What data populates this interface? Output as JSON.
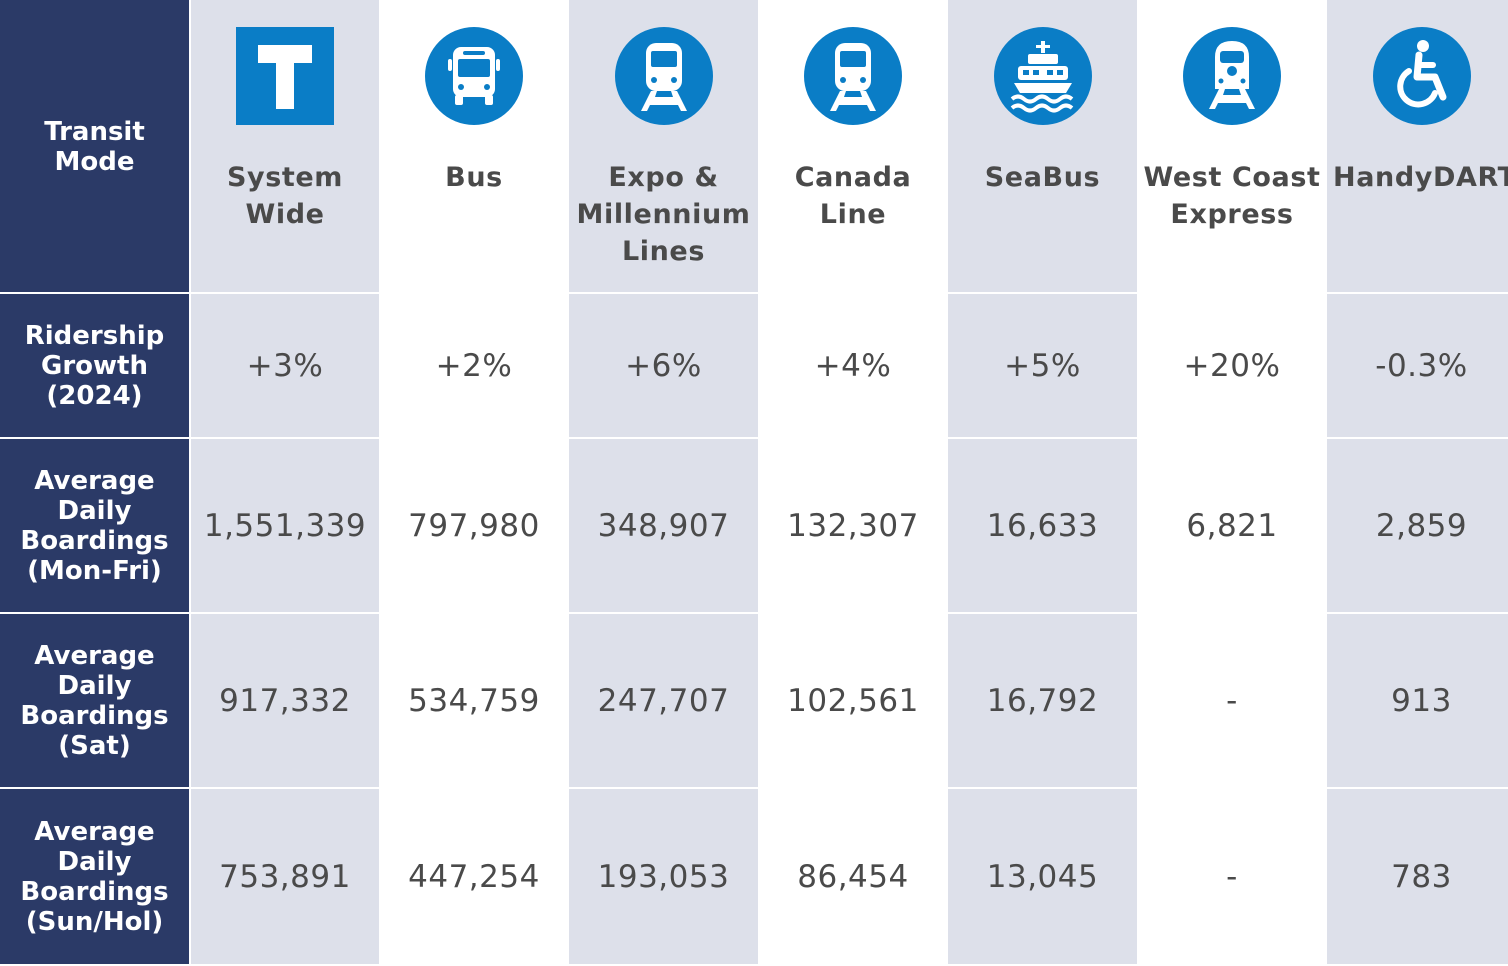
{
  "header": {
    "row_label": "Transit Mode",
    "modes": [
      {
        "label": "System Wide",
        "icon": "transit-t-icon"
      },
      {
        "label": "Bus",
        "icon": "bus-icon"
      },
      {
        "label": "Expo & Millennium Lines",
        "icon": "skytrain-icon"
      },
      {
        "label": "Canada Line",
        "icon": "skytrain-icon"
      },
      {
        "label": "SeaBus",
        "icon": "ferry-icon"
      },
      {
        "label": "West Coast Express",
        "icon": "commuter-train-icon"
      },
      {
        "label": "HandyDART",
        "icon": "wheelchair-icon"
      }
    ]
  },
  "rows": [
    {
      "label": "Ridership Growth (2024)",
      "values": [
        "+3%",
        "+2%",
        "+6%",
        "+4%",
        "+5%",
        "+20%",
        "-0.3%"
      ]
    },
    {
      "label": "Average Daily Boardings (Mon-Fri)",
      "values": [
        "1,551,339",
        "797,980",
        "348,907",
        "132,307",
        "16,633",
        "6,821",
        "2,859"
      ]
    },
    {
      "label": "Average Daily Boardings (Sat)",
      "values": [
        "917,332",
        "534,759",
        "247,707",
        "102,561",
        "16,792",
        "-",
        "913"
      ]
    },
    {
      "label": "Average Daily Boardings (Sun/Hol)",
      "values": [
        "753,891",
        "447,254",
        "193,053",
        "86,454",
        "13,045",
        "-",
        "783"
      ]
    }
  ],
  "colors": {
    "row_header_bg": "#2b3a67",
    "shaded_column_bg": "#dde0ea",
    "icon_blue": "#0a7dc6",
    "text": "#4a4a4a"
  }
}
